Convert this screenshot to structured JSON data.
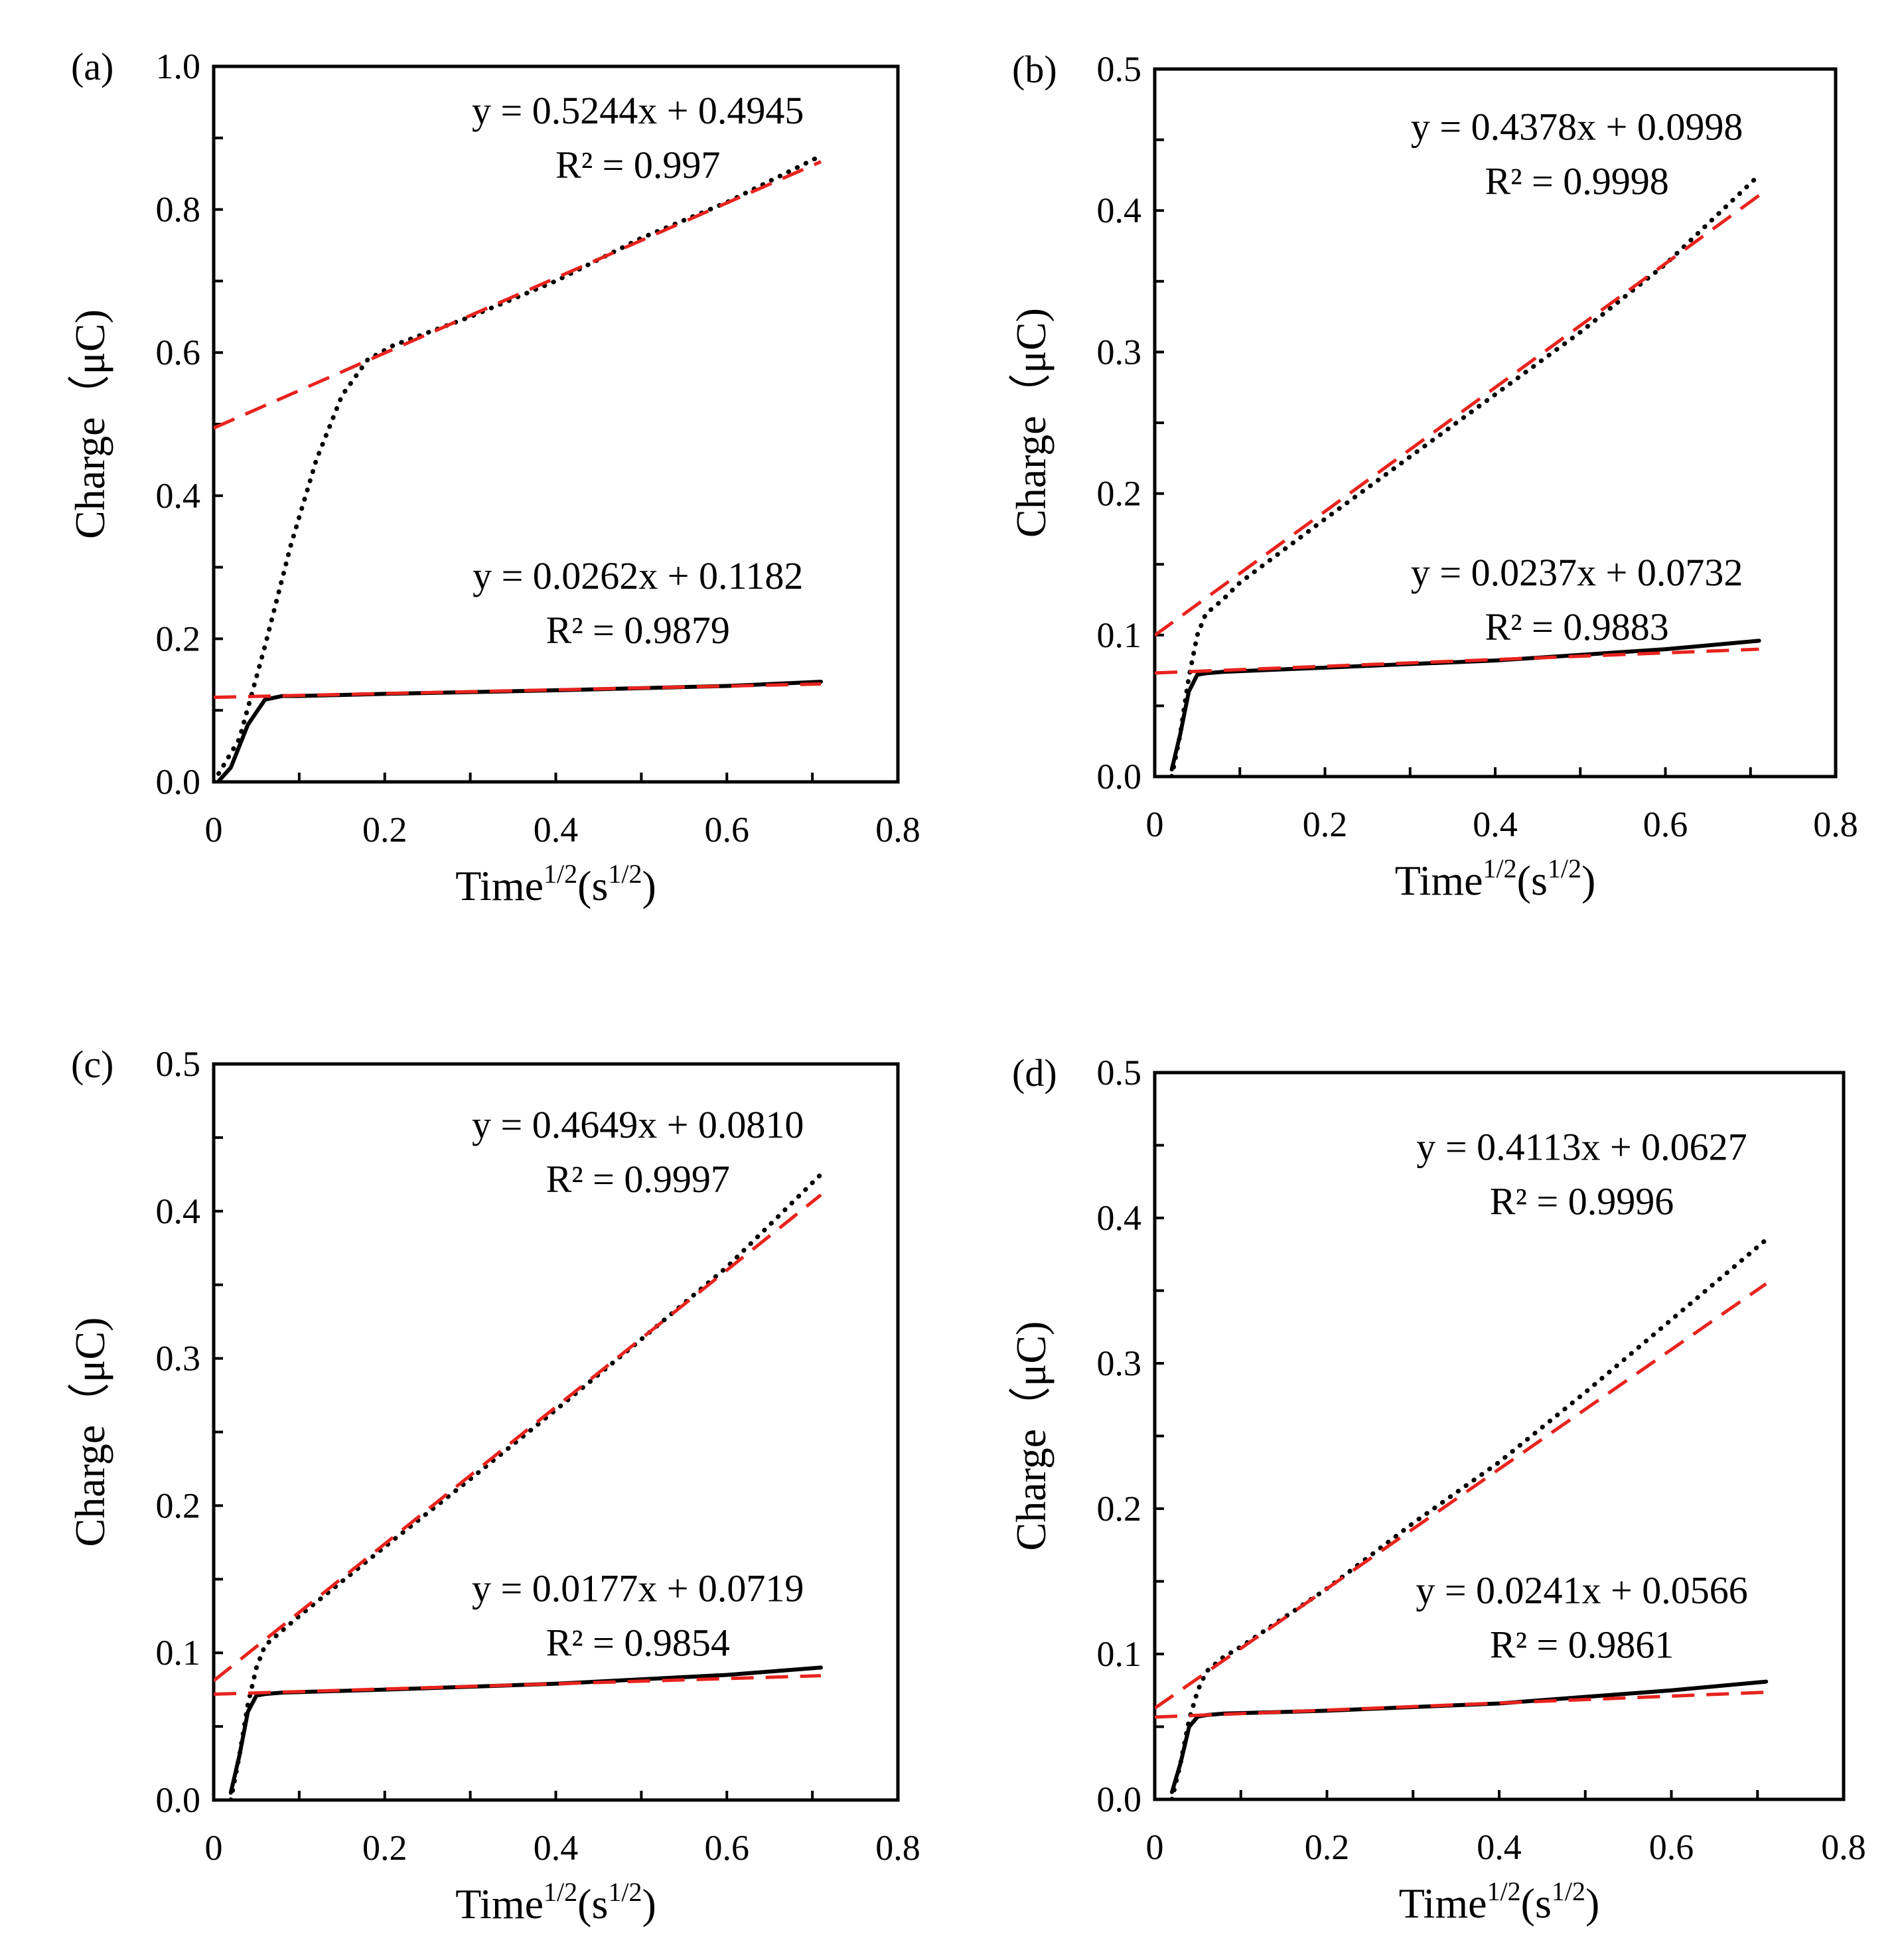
{
  "chart_data": [
    {
      "type": "line",
      "panel_label": "(a)",
      "xlabel": {
        "base": "Time",
        "sup1": "1/2",
        "mid": "(s",
        "sup2": "1/2",
        "end": ")"
      },
      "ylabel": "Charge（μC)",
      "xlim": [
        0,
        0.8
      ],
      "ylim": [
        0,
        1.0
      ],
      "x_ticks": [
        "0",
        "0.2",
        "0.4",
        "0.6",
        "0.8"
      ],
      "y_ticks": [
        "0.0",
        "0.2",
        "0.4",
        "0.6",
        "0.8",
        "1.0"
      ],
      "series": [
        {
          "name": "upper-data",
          "style": "dotted",
          "x": [
            0.0,
            0.03,
            0.06,
            0.09,
            0.12,
            0.15,
            0.18,
            0.21,
            0.3,
            0.4,
            0.5,
            0.6,
            0.71
          ],
          "y": [
            0.0,
            0.06,
            0.19,
            0.33,
            0.45,
            0.54,
            0.59,
            0.61,
            0.65,
            0.7,
            0.76,
            0.81,
            0.875
          ]
        },
        {
          "name": "lower-data",
          "style": "solid",
          "x": [
            0.005,
            0.02,
            0.04,
            0.06,
            0.08,
            0.1,
            0.2,
            0.4,
            0.6,
            0.71
          ],
          "y": [
            0.0,
            0.02,
            0.08,
            0.115,
            0.12,
            0.12,
            0.123,
            0.128,
            0.134,
            0.14
          ]
        },
        {
          "name": "upper-fit",
          "style": "dashed",
          "slope": 0.5244,
          "intercept": 0.4945,
          "xrange": [
            0,
            0.71
          ]
        },
        {
          "name": "lower-fit",
          "style": "dashed",
          "slope": 0.0262,
          "intercept": 0.1182,
          "xrange": [
            0,
            0.71
          ]
        }
      ],
      "annotations": [
        {
          "eq": "y = 0.5244x + 0.4945",
          "r_label": "R² = 0.997"
        },
        {
          "eq": "y = 0.0262x + 0.1182",
          "r_label": "R² = 0.9879"
        }
      ]
    },
    {
      "type": "line",
      "panel_label": "(b)",
      "xlabel": {
        "base": "Time",
        "sup1": "1/2",
        "mid": "(s",
        "sup2": "1/2",
        "end": ")"
      },
      "ylabel": "Charge（μC)",
      "xlim": [
        0,
        0.8
      ],
      "ylim": [
        0,
        0.5
      ],
      "x_ticks": [
        "0",
        "0.2",
        "0.4",
        "0.6",
        "0.8"
      ],
      "y_ticks": [
        "0.0",
        "0.1",
        "0.2",
        "0.3",
        "0.4",
        "0.5"
      ],
      "series": [
        {
          "name": "upper-data",
          "style": "dotted",
          "x": [
            0.02,
            0.03,
            0.04,
            0.05,
            0.06,
            0.08,
            0.1,
            0.2,
            0.3,
            0.4,
            0.5,
            0.6,
            0.71
          ],
          "y": [
            0.0,
            0.03,
            0.07,
            0.1,
            0.115,
            0.125,
            0.137,
            0.182,
            0.226,
            0.27,
            0.314,
            0.362,
            0.425
          ]
        },
        {
          "name": "lower-data",
          "style": "solid",
          "x": [
            0.02,
            0.03,
            0.04,
            0.05,
            0.06,
            0.08,
            0.2,
            0.4,
            0.6,
            0.71
          ],
          "y": [
            0.005,
            0.03,
            0.06,
            0.072,
            0.073,
            0.074,
            0.077,
            0.082,
            0.09,
            0.096
          ]
        },
        {
          "name": "upper-fit",
          "style": "dashed",
          "slope": 0.4378,
          "intercept": 0.0998,
          "xrange": [
            0,
            0.71
          ]
        },
        {
          "name": "lower-fit",
          "style": "dashed",
          "slope": 0.0237,
          "intercept": 0.0732,
          "xrange": [
            0,
            0.71
          ]
        }
      ],
      "annotations": [
        {
          "eq": "y = 0.4378x + 0.0998",
          "r_label": "R² = 0.9998"
        },
        {
          "eq": "y = 0.0237x + 0.0732",
          "r_label": "R² = 0.9883"
        }
      ]
    },
    {
      "type": "line",
      "panel_label": "(c)",
      "xlabel": {
        "base": "Time",
        "sup1": "1/2",
        "mid": "(s",
        "sup2": "1/2",
        "end": ")"
      },
      "ylabel": "Charge（μC)",
      "xlim": [
        0,
        0.8
      ],
      "ylim": [
        0,
        0.5
      ],
      "x_ticks": [
        "0",
        "0.2",
        "0.4",
        "0.6",
        "0.8"
      ],
      "y_ticks": [
        "0.0",
        "0.1",
        "0.2",
        "0.3",
        "0.4",
        "0.5"
      ],
      "series": [
        {
          "name": "upper-data",
          "style": "dotted",
          "x": [
            0.02,
            0.03,
            0.04,
            0.05,
            0.06,
            0.08,
            0.1,
            0.2,
            0.3,
            0.4,
            0.5,
            0.6,
            0.71
          ],
          "y": [
            0.0,
            0.03,
            0.065,
            0.09,
            0.105,
            0.115,
            0.125,
            0.172,
            0.218,
            0.265,
            0.313,
            0.362,
            0.425
          ]
        },
        {
          "name": "lower-data",
          "style": "solid",
          "x": [
            0.02,
            0.03,
            0.04,
            0.05,
            0.06,
            0.08,
            0.2,
            0.4,
            0.6,
            0.71
          ],
          "y": [
            0.005,
            0.03,
            0.06,
            0.071,
            0.072,
            0.073,
            0.075,
            0.079,
            0.085,
            0.09
          ]
        },
        {
          "name": "upper-fit",
          "style": "dashed",
          "slope": 0.4649,
          "intercept": 0.081,
          "xrange": [
            0,
            0.71
          ]
        },
        {
          "name": "lower-fit",
          "style": "dashed",
          "slope": 0.0177,
          "intercept": 0.0719,
          "xrange": [
            0,
            0.71
          ]
        }
      ],
      "annotations": [
        {
          "eq": "y = 0.4649x + 0.0810",
          "r_label": "R² = 0.9997"
        },
        {
          "eq": "y = 0.0177x + 0.0719",
          "r_label": "R² = 0.9854"
        }
      ]
    },
    {
      "type": "line",
      "panel_label": "(d)",
      "xlabel": {
        "base": "Time",
        "sup1": "1/2",
        "mid": "(s",
        "sup2": "1/2",
        "end": ")"
      },
      "ylabel": "Charge（μC)",
      "xlim": [
        0,
        0.8
      ],
      "ylim": [
        0,
        0.5
      ],
      "x_ticks": [
        "0",
        "0.2",
        "0.4",
        "0.6",
        "0.8"
      ],
      "y_ticks": [
        "0.0",
        "0.1",
        "0.2",
        "0.3",
        "0.4",
        "0.5"
      ],
      "series": [
        {
          "name": "upper-data",
          "style": "dotted",
          "x": [
            0.02,
            0.03,
            0.04,
            0.05,
            0.06,
            0.08,
            0.1,
            0.2,
            0.3,
            0.4,
            0.5,
            0.6,
            0.71
          ],
          "y": [
            0.0,
            0.025,
            0.055,
            0.075,
            0.088,
            0.098,
            0.105,
            0.145,
            0.19,
            0.232,
            0.28,
            0.33,
            0.385
          ]
        },
        {
          "name": "lower-data",
          "style": "solid",
          "x": [
            0.02,
            0.03,
            0.04,
            0.05,
            0.06,
            0.08,
            0.2,
            0.4,
            0.6,
            0.71
          ],
          "y": [
            0.005,
            0.025,
            0.05,
            0.057,
            0.058,
            0.059,
            0.061,
            0.066,
            0.075,
            0.081
          ]
        },
        {
          "name": "upper-fit",
          "style": "dashed",
          "slope": 0.4113,
          "intercept": 0.0627,
          "xrange": [
            0,
            0.71
          ]
        },
        {
          "name": "lower-fit",
          "style": "dashed",
          "slope": 0.0241,
          "intercept": 0.0566,
          "xrange": [
            0,
            0.71
          ]
        }
      ],
      "annotations": [
        {
          "eq": "y = 0.4113x + 0.0627",
          "r_label": "R² = 0.9996"
        },
        {
          "eq": "y = 0.0241x + 0.0566",
          "r_label": "R² = 0.9861"
        }
      ]
    }
  ],
  "colors": {
    "data": "#000000",
    "fit": "#e8231d",
    "frame": "#000000",
    "background": "#ffffff"
  }
}
